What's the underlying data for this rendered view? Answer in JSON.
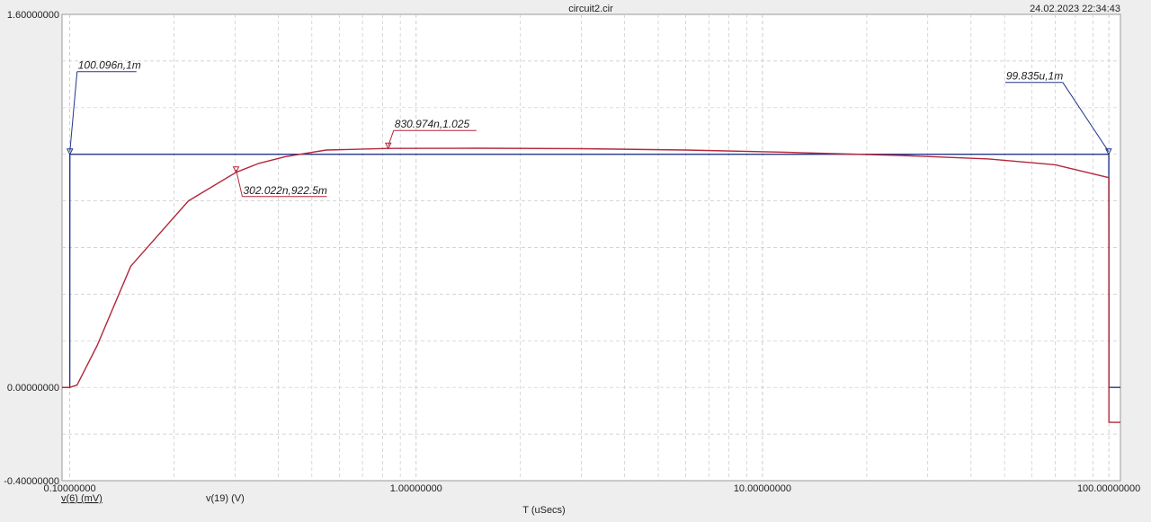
{
  "window": {
    "title": "circuit2.cir",
    "timestamp": "24.02.2023 22:34:43"
  },
  "colors": {
    "background": "#eeeeee",
    "plot_area": "#ffffff",
    "grid": "#c8c8c8",
    "blue_trace": "#23358a",
    "red_trace": "#b3273a"
  },
  "chart_data": {
    "type": "line",
    "x_scale": "log",
    "xlabel": "T (uSecs)",
    "xlim": [
      0.095,
      108
    ],
    "ylim": [
      -0.4,
      1.6
    ],
    "x_tick_labels": [
      {
        "value": 0.1,
        "label": "0.10000000"
      },
      {
        "value": 1,
        "label": "1.00000000"
      },
      {
        "value": 10,
        "label": "10.00000000"
      },
      {
        "value": 100,
        "label": "100.00000000"
      }
    ],
    "y_tick_labels": [
      {
        "value": 1.6,
        "label": "1.60000000"
      },
      {
        "value": 0.0,
        "label": "0.00000000"
      },
      {
        "value": -0.4,
        "label": "-0.40000000"
      }
    ],
    "grid": true,
    "series": [
      {
        "name": "v(6) (mV)",
        "color": "#23358a",
        "points": [
          [
            0.095,
            0.0
          ],
          [
            0.1,
            0.0
          ],
          [
            0.1001,
            1.0
          ],
          [
            99.835,
            1.0
          ],
          [
            99.84,
            1.0
          ],
          [
            100.0,
            1.0
          ],
          [
            100.05,
            0.0
          ],
          [
            108,
            0.0
          ]
        ]
      },
      {
        "name": "v(19) (V)",
        "color": "#b3273a",
        "points": [
          [
            0.095,
            0.0
          ],
          [
            0.1,
            0.0
          ],
          [
            0.105,
            0.01
          ],
          [
            0.12,
            0.18
          ],
          [
            0.15,
            0.52
          ],
          [
            0.22,
            0.8
          ],
          [
            0.302,
            0.9225
          ],
          [
            0.35,
            0.96
          ],
          [
            0.42,
            0.99
          ],
          [
            0.55,
            1.018
          ],
          [
            0.831,
            1.025
          ],
          [
            1.5,
            1.026
          ],
          [
            3.0,
            1.024
          ],
          [
            6.0,
            1.018
          ],
          [
            12.0,
            1.008
          ],
          [
            25.0,
            0.995
          ],
          [
            45.0,
            0.98
          ],
          [
            70.0,
            0.955
          ],
          [
            99.9,
            0.9
          ],
          [
            100.0,
            0.9
          ],
          [
            100.02,
            0.62
          ],
          [
            100.05,
            -0.15
          ],
          [
            108,
            -0.15
          ]
        ]
      }
    ],
    "annotations": [
      {
        "text": "100.096n,1m",
        "series": "v(6) (mV)",
        "x": 0.100096,
        "y": 1.0
      },
      {
        "text": "99.835u,1m",
        "series": "v(6) (mV)",
        "x": 99.835,
        "y": 1.0
      },
      {
        "text": "830.974n,1.025",
        "series": "v(19) (V)",
        "x": 0.830974,
        "y": 1.025
      },
      {
        "text": "302.022n,922.5m",
        "series": "v(19) (V)",
        "x": 0.302022,
        "y": 0.9225
      }
    ]
  }
}
